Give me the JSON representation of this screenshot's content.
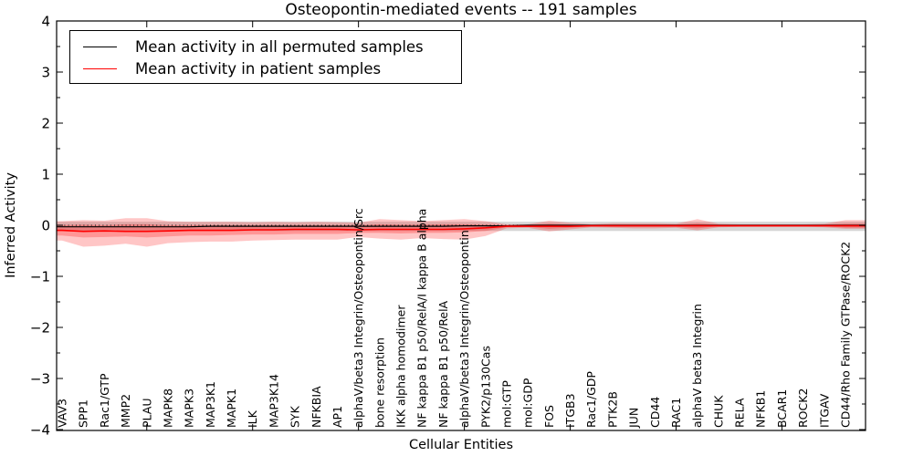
{
  "title": "Osteopontin-mediated events -- 191 samples",
  "axes": {
    "xlabel": "Cellular Entities",
    "ylabel": "Inferred Activity",
    "yticks": [
      "4",
      "3",
      "2",
      "1",
      "0",
      "−1",
      "−2",
      "−3",
      "−4"
    ]
  },
  "legend": {
    "items": [
      {
        "label": "Mean activity in all permuted samples",
        "color": "#000000"
      },
      {
        "label": "Mean activity in patient samples",
        "color": "#ff0000"
      }
    ]
  },
  "chart_data": {
    "type": "line",
    "title": "Osteopontin-mediated events -- 191 samples",
    "xlabel": "Cellular Entities",
    "ylabel": "Inferred Activity",
    "ylim": [
      -4,
      4
    ],
    "ytick_values": [
      4,
      3,
      2,
      1,
      0,
      -1,
      -2,
      -3,
      -4
    ],
    "grid": false,
    "legend_position": "upper left",
    "x_tick_label_rotation": 90,
    "zero_line": {
      "value": 0,
      "style": "dotted",
      "color": "#000000"
    },
    "top_tick_indices": [
      4,
      9,
      14,
      19,
      24,
      29,
      34
    ],
    "categories": [
      "VAV3",
      "SPP1",
      "Rac1/GTP",
      "MMP2",
      "PLAU",
      "MAPK8",
      "MAPK3",
      "MAP3K1",
      "MAPK1",
      "ILK",
      "MAP3K14",
      "SYK",
      "NFKBIA",
      "AP1",
      "alphaV/beta3 Integrin/Osteopontin/Src",
      "bone resorption",
      "IKK alpha homodimer",
      "NF kappa B1 p50/RelA/I kappa B alpha",
      "NF kappa B1 p50/RelA",
      "alphaV/beta3 Integrin/Osteopontin",
      "PYK2/p130Cas",
      "mol:GTP",
      "mol:GDP",
      "FOS",
      "ITGB3",
      "Rac1/GDP",
      "PTK2B",
      "JUN",
      "CD44",
      "RAC1",
      "alphaV beta3 Integrin",
      "CHUK",
      "RELA",
      "NFKB1",
      "BCAR1",
      "ROCK2",
      "ITGAV",
      "CD44/Rho Family GTPase/ROCK2"
    ],
    "series": [
      {
        "name": "Mean activity in all permuted samples",
        "color": "#000000",
        "width": 1.2,
        "values": [
          -0.03,
          -0.03,
          -0.03,
          -0.03,
          -0.03,
          -0.03,
          -0.03,
          -0.02,
          -0.02,
          -0.02,
          -0.02,
          -0.02,
          -0.02,
          -0.02,
          -0.02,
          -0.02,
          -0.02,
          -0.02,
          -0.02,
          -0.01,
          -0.01,
          -0.01,
          0,
          0,
          0,
          0,
          0,
          0,
          0,
          0,
          0,
          0,
          0,
          0,
          0,
          0,
          0,
          0
        ]
      },
      {
        "name": "Mean activity in patient samples",
        "color": "#ff0000",
        "width": 1.6,
        "values": [
          -0.1,
          -0.12,
          -0.11,
          -0.12,
          -0.12,
          -0.11,
          -0.1,
          -0.1,
          -0.1,
          -0.09,
          -0.09,
          -0.08,
          -0.08,
          -0.08,
          -0.09,
          -0.08,
          -0.08,
          -0.08,
          -0.08,
          -0.07,
          -0.05,
          -0.02,
          -0.02,
          -0.02,
          -0.02,
          -0.01,
          -0.01,
          -0.01,
          -0.01,
          -0.01,
          -0.01,
          -0.01,
          -0.01,
          -0.01,
          -0.01,
          -0.01,
          -0.01,
          -0.01
        ]
      }
    ],
    "bands": [
      {
        "name": "permuted-sample-range",
        "color": "#828282",
        "opacity": 0.33,
        "upper": 0.07,
        "lower": -0.11
      },
      {
        "name": "patient-outer-range",
        "color": "#ff1a1a",
        "opacity": 0.25,
        "upper": [
          0.08,
          0.1,
          0.09,
          0.14,
          0.14,
          0.08,
          0.07,
          0.07,
          0.07,
          0.06,
          0.07,
          0.06,
          0.07,
          0.06,
          0.05,
          0.12,
          0.1,
          0.08,
          0.1,
          0.12,
          0.08,
          0.02,
          0.02,
          0.09,
          0.05,
          0.02,
          0.04,
          0.04,
          0.04,
          0.03,
          0.12,
          0.03,
          0.02,
          0.02,
          0.02,
          0.02,
          0.03,
          0.1
        ],
        "lower": [
          -0.3,
          -0.42,
          -0.4,
          -0.36,
          -0.42,
          -0.35,
          -0.33,
          -0.32,
          -0.32,
          -0.3,
          -0.29,
          -0.28,
          -0.28,
          -0.28,
          -0.23,
          -0.26,
          -0.28,
          -0.25,
          -0.27,
          -0.28,
          -0.21,
          -0.06,
          -0.05,
          -0.12,
          -0.08,
          -0.04,
          -0.05,
          -0.06,
          -0.06,
          -0.05,
          -0.1,
          -0.04,
          -0.03,
          -0.03,
          -0.03,
          -0.03,
          -0.04,
          -0.07
        ]
      },
      {
        "name": "patient-inner-range",
        "color": "#ff1a1a",
        "opacity": 0.28,
        "upper": [
          0.0,
          0.01,
          0.0,
          0.02,
          0.02,
          0.0,
          0.0,
          0.0,
          0.0,
          0.0,
          0.0,
          0.0,
          0.0,
          0.0,
          0.0,
          0.02,
          0.01,
          0.01,
          0.02,
          0.02,
          0.01,
          0.0,
          0.0,
          0.03,
          0.01,
          0.0,
          0.01,
          0.01,
          0.01,
          0.01,
          0.04,
          0.01,
          0.0,
          0.0,
          0.0,
          0.0,
          0.01,
          0.03
        ],
        "lower": [
          -0.2,
          -0.24,
          -0.23,
          -0.22,
          -0.24,
          -0.22,
          -0.2,
          -0.2,
          -0.19,
          -0.18,
          -0.18,
          -0.17,
          -0.17,
          -0.17,
          -0.15,
          -0.15,
          -0.16,
          -0.15,
          -0.15,
          -0.14,
          -0.11,
          -0.04,
          -0.03,
          -0.07,
          -0.05,
          -0.02,
          -0.03,
          -0.03,
          -0.03,
          -0.03,
          -0.06,
          -0.02,
          -0.02,
          -0.02,
          -0.02,
          -0.02,
          -0.02,
          -0.05
        ]
      }
    ]
  }
}
